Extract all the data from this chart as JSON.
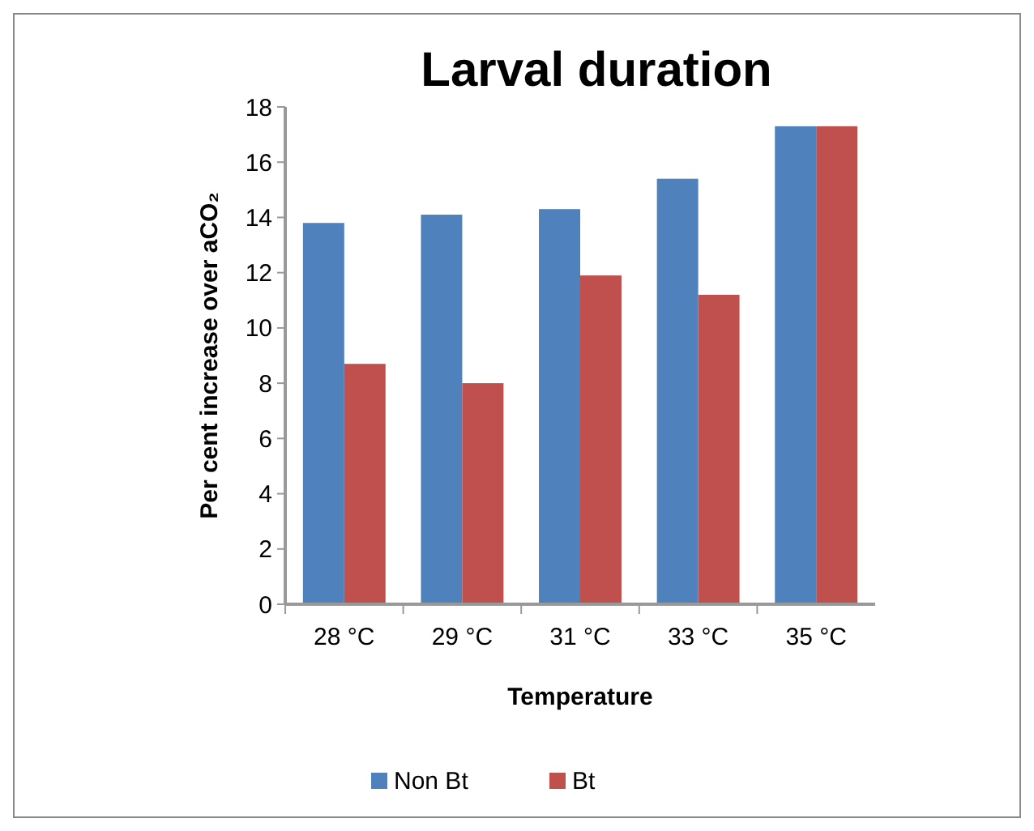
{
  "chart_data": {
    "type": "bar",
    "title": "Larval duration",
    "xlabel": "Temperature",
    "ylabel": "Per cent increase over aCO₂",
    "categories": [
      "28 °C",
      "29 °C",
      "31 °C",
      "33 °C",
      "35 °C"
    ],
    "series": [
      {
        "name": "Non Bt",
        "color": "#4f81bd",
        "values": [
          13.8,
          14.1,
          14.3,
          15.4,
          17.3
        ]
      },
      {
        "name": "Bt",
        "color": "#c0504d",
        "values": [
          8.7,
          8.0,
          11.9,
          11.2,
          17.3
        ]
      }
    ],
    "ylim": [
      0,
      18
    ],
    "yticks": [
      0,
      2,
      4,
      6,
      8,
      10,
      12,
      14,
      16,
      18
    ],
    "grid": false,
    "legend": "bottom"
  }
}
